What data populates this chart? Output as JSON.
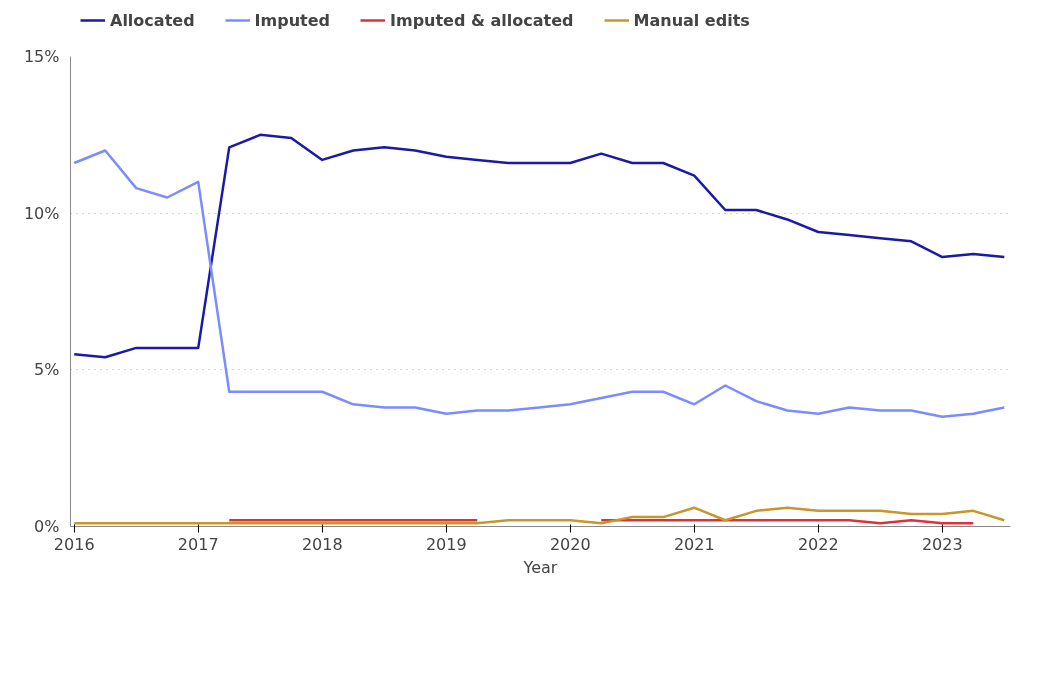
{
  "chart_data": {
    "type": "line",
    "xlabel": "Year",
    "x": [
      2016,
      2016.25,
      2016.5,
      2016.75,
      2017,
      2017.25,
      2017.5,
      2017.75,
      2018,
      2018.25,
      2018.5,
      2018.75,
      2019,
      2019.25,
      2019.5,
      2019.75,
      2020,
      2020.25,
      2020.5,
      2020.75,
      2021,
      2021.25,
      2021.5,
      2021.75,
      2022,
      2022.25,
      2022.5,
      2022.75,
      2023,
      2023.25,
      2023.5
    ],
    "series": [
      {
        "name": "Allocated",
        "color": "#1a1aa6",
        "values": [
          5.5,
          5.4,
          5.7,
          5.7,
          5.7,
          12.1,
          12.5,
          12.4,
          11.7,
          12.0,
          12.1,
          12.0,
          11.8,
          11.7,
          11.6,
          11.6,
          11.6,
          11.9,
          11.6,
          11.6,
          11.2,
          10.1,
          10.1,
          9.8,
          9.4,
          9.3,
          9.2,
          9.1,
          8.6,
          8.7,
          8.6
        ]
      },
      {
        "name": "Imputed",
        "color": "#7b8cff",
        "values": [
          11.6,
          12.0,
          10.8,
          10.5,
          11.0,
          4.3,
          4.3,
          4.3,
          4.3,
          3.9,
          3.8,
          3.8,
          3.6,
          3.7,
          3.7,
          3.8,
          3.9,
          4.1,
          4.3,
          4.3,
          3.9,
          4.5,
          4.0,
          3.7,
          3.6,
          3.8,
          3.7,
          3.7,
          3.5,
          3.6,
          3.8
        ]
      },
      {
        "name": "Imputed & allocated",
        "color": "#e0303a",
        "values": [
          null,
          null,
          null,
          null,
          null,
          0.2,
          0.2,
          0.2,
          0.2,
          0.2,
          0.2,
          0.2,
          0.2,
          0.2,
          null,
          null,
          null,
          0.2,
          0.2,
          0.2,
          0.2,
          0.2,
          0.2,
          0.2,
          0.2,
          0.2,
          0.1,
          0.2,
          0.1,
          0.1,
          null
        ]
      },
      {
        "name": "Manual edits",
        "color": "#c8962a",
        "values": [
          0.1,
          0.1,
          0.1,
          0.1,
          0.1,
          0.1,
          0.1,
          0.1,
          0.1,
          0.1,
          0.1,
          0.1,
          0.1,
          0.1,
          0.2,
          0.2,
          0.2,
          0.1,
          0.3,
          0.3,
          0.6,
          0.2,
          0.5,
          0.6,
          0.5,
          0.5,
          0.5,
          0.4,
          0.4,
          0.5,
          0.2
        ]
      }
    ],
    "xlim": [
      2015.97,
      2023.55
    ],
    "xticks": [
      2016,
      2017,
      2018,
      2019,
      2020,
      2021,
      2022,
      2023
    ],
    "ylim": [
      0,
      15
    ],
    "yticks": [
      {
        "value": 0,
        "label": "0%"
      },
      {
        "value": 5,
        "label": "5%"
      },
      {
        "value": 10,
        "label": "10%"
      },
      {
        "value": 15,
        "label": "15%"
      }
    ],
    "grid": "y",
    "legend": "top",
    "marker": "none",
    "line_style": "solid"
  }
}
